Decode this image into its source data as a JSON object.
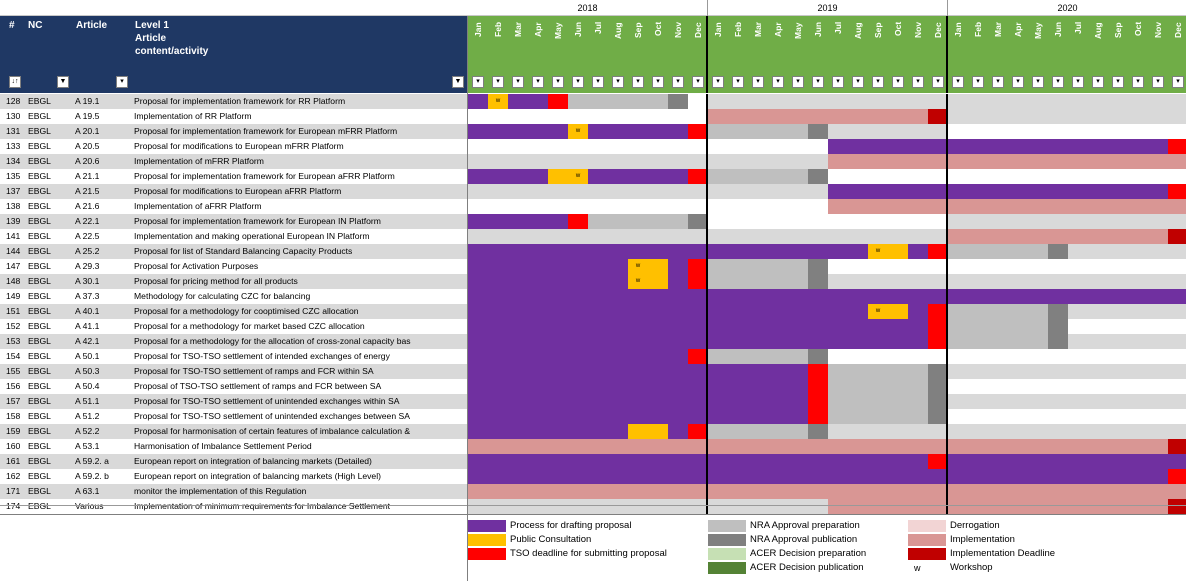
{
  "colors": {
    "P": "#7030a0",
    "C": "#ffc000",
    "T": "#ff0000",
    "A": "#bfbfbf",
    "B": "#808080",
    "D": "#c6e0b4",
    "E": "#548235",
    "G": "#f2d4d4",
    "I": "#d99694",
    "J": "#c00000",
    "L": "#d9d9d9",
    "header_blue": "#1f3864",
    "header_green": "#70ad47"
  },
  "header": {
    "hash": "#",
    "nc": "NC",
    "article": "Article",
    "level": "Level 1",
    "level2": "Article",
    "level3": "content/activity",
    "sort_btn": "↓↑",
    "filter_icon": "▼",
    "dropdown_icon": "▾"
  },
  "years": [
    "2018",
    "2019",
    "2020"
  ],
  "months": [
    "Jan",
    "Feb",
    "Mar",
    "Apr",
    "May",
    "Jun",
    "Jul",
    "Aug",
    "Sep",
    "Oct",
    "Nov",
    "Dec",
    "Jan",
    "Feb",
    "Mar",
    "Apr",
    "May",
    "Jun",
    "Jul",
    "Aug",
    "Sep",
    "Oct",
    "Nov",
    "Dec",
    "Jan",
    "Feb",
    "Mar",
    "Apr",
    "May",
    "Jun",
    "Jul",
    "Aug",
    "Sep",
    "Oct",
    "Nov",
    "Dec"
  ],
  "rows": [
    {
      "num": "128",
      "nc": "EBGL",
      "art": "A 19.1",
      "desc": "Proposal for implementation framework for RR Platform",
      "cells": "PCPPTAAAAAB_LLLLLLLLLLLLLLLLLLLLLLLL",
      "w": [
        1
      ]
    },
    {
      "num": "130",
      "nc": "EBGL",
      "art": "A 19.5",
      "desc": "Implementation of RR Platform",
      "cells": "____________IIIIIIIIIIIJLLLLLLLLLLLL",
      "w": []
    },
    {
      "num": "131",
      "nc": "EBGL",
      "art": "A 20.1",
      "desc": "Proposal for implementation framework for European mFRR Platform",
      "cells": "PPPPPCPPPPPTAAAAABLLLLLL____________",
      "w": [
        5
      ]
    },
    {
      "num": "133",
      "nc": "EBGL",
      "art": "A 20.5",
      "desc": "Proposal for modifications to European mFRR Platform",
      "cells": "__________________PPPPPPPPPPPPPPPPPT",
      "w": []
    },
    {
      "num": "134",
      "nc": "EBGL",
      "art": "A 20.6",
      "desc": "Implementation of mFRR Platform",
      "cells": "LLLLLLLLLLLLLLLLLLIIIIIIIIIIIIIIIIII",
      "w": []
    },
    {
      "num": "135",
      "nc": "EBGL",
      "art": "A 21.1",
      "desc": "Proposal for implementation framework for European aFRR Platform",
      "cells": "PPPPCCPPPPPTAAAAAB__________________",
      "w": [
        5
      ]
    },
    {
      "num": "137",
      "nc": "EBGL",
      "art": "A 21.5",
      "desc": "Proposal for modifications to European aFRR Platform",
      "cells": "LLLLLLLLLLLLLLLLLLPPPPPPPPPPPPPPPPPT",
      "w": []
    },
    {
      "num": "138",
      "nc": "EBGL",
      "art": "A 21.6",
      "desc": "Implementation of aFRR Platform",
      "cells": "__________________IIIIIIIIIIIIIIIIII",
      "w": []
    },
    {
      "num": "139",
      "nc": "EBGL",
      "art": "A 22.1",
      "desc": "Proposal for implementation framework for European IN Platform",
      "cells": "PPPPPTAAAAAB____________LLLLLLLLLLLL",
      "w": []
    },
    {
      "num": "141",
      "nc": "EBGL",
      "art": "A 22.5",
      "desc": "Implementation and making operational European IN Platform",
      "cells": "LLLLLLLLLLLLLLLLLLLLLLLLIIIIIIIIIIIJ",
      "w": []
    },
    {
      "num": "144",
      "nc": "EBGL",
      "art": "A 25.2",
      "desc": "Proposal for list of Standard Balancing Capacity Products",
      "cells": "PPPPPPPPPPPPPPPPPPPPCCPTAAAAABLLLLLL",
      "w": [
        20
      ]
    },
    {
      "num": "147",
      "nc": "EBGL",
      "art": "A 29.3",
      "desc": "Proposal for Activation Purposes",
      "cells": "PPPPPPPPCCPTAAAAAB__________________",
      "w": [
        8
      ]
    },
    {
      "num": "148",
      "nc": "EBGL",
      "art": "A 30.1",
      "desc": "Proposal for pricing method for all products",
      "cells": "PPPPPPPPCCPTAAAAABLLLLLLLLLLLLLLLLLL",
      "w": [
        8
      ]
    },
    {
      "num": "149",
      "nc": "EBGL",
      "art": "A 37.3",
      "desc": "Methodology for calculating CZC for balancing",
      "cells": "PPPPPPPPPPPPPPPPPPPPPPPPPPPPPPPPPPPP",
      "w": []
    },
    {
      "num": "151",
      "nc": "EBGL",
      "art": "A 40.1",
      "desc": "Proposal for a methodology for cooptimised CZC allocation",
      "cells": "PPPPPPPPPPPPPPPPPPPPCCPTAAAAABLLLLLL",
      "w": [
        20
      ]
    },
    {
      "num": "152",
      "nc": "EBGL",
      "art": "A 41.1",
      "desc": "Proposal for a methodology for market based CZC allocation",
      "cells": "PPPPPPPPPPPPPPPPPPPPPPPTAAAAAB______",
      "w": []
    },
    {
      "num": "153",
      "nc": "EBGL",
      "art": "A 42.1",
      "desc": "Proposal for a methodology for the allocation of cross-zonal capacity bas",
      "cells": "PPPPPPPPPPPPPPPPPPPPPPPTAAAAABLLLLLL",
      "w": []
    },
    {
      "num": "154",
      "nc": "EBGL",
      "art": "A 50.1",
      "desc": "Proposal for TSO-TSO settlement of intended exchanges of energy",
      "cells": "PPPPPPPPPPPTAAAAAB__________________",
      "w": []
    },
    {
      "num": "155",
      "nc": "EBGL",
      "art": "A 50.3",
      "desc": "Proposal for TSO-TSO settlement of ramps and FCR within SA",
      "cells": "PPPPPPPPPPPPPPPPPTAAAAABLLLLLLLLLLLL",
      "w": []
    },
    {
      "num": "156",
      "nc": "EBGL",
      "art": "A 50.4",
      "desc": "Proposal of TSO-TSO settlement of ramps and FCR between SA",
      "cells": "PPPPPPPPPPPPPPPPPTAAAAAB____________",
      "w": []
    },
    {
      "num": "157",
      "nc": "EBGL",
      "art": "A 51.1",
      "desc": "Proposal for TSO-TSO settlement of unintended exchanges within SA",
      "cells": "PPPPPPPPPPPPPPPPPTAAAAABLLLLLLLLLLLL",
      "w": []
    },
    {
      "num": "158",
      "nc": "EBGL",
      "art": "A 51.2",
      "desc": "Proposal for TSO-TSO settlement of unintended exchanges between SA",
      "cells": "PPPPPPPPPPPPPPPPPTAAAAAB____________",
      "w": []
    },
    {
      "num": "159",
      "nc": "EBGL",
      "art": "A 52.2",
      "desc": "Proposal for harmonisation of certain features of imbalance calculation &",
      "cells": "PPPPPPPPCCPTAAAAABLLLLLLLLLLLLLLLLLL",
      "w": []
    },
    {
      "num": "160",
      "nc": "EBGL",
      "art": "A 53.1",
      "desc": "Harmonisation of Imbalance Settlement Period",
      "cells": "IIIIIIIIIIIIIIIIIIIIIIIIIIIIIIIIIIIJ",
      "w": []
    },
    {
      "num": "161",
      "nc": "EBGL",
      "art": "A 59.2. a",
      "desc": "European report on integration of balancing markets (Detailed)",
      "cells": "PPPPPPPPPPPPPPPPPPPPPPPTPPPPPPPPPPPP",
      "w": []
    },
    {
      "num": "162",
      "nc": "EBGL",
      "art": "A 59.2. b",
      "desc": "European report on integration of balancing markets (High Level)",
      "cells": "PPPPPPPPPPPPPPPPPPPPPPPPPPPPPPPPPPPT",
      "w": []
    },
    {
      "num": "171",
      "nc": "EBGL",
      "art": "A 63.1",
      "desc": "monitor the implementation of this Regulation",
      "cells": "IIIIIIIIIIIIIIIIIIIIIIIIIIIIIIIIIIII",
      "w": []
    },
    {
      "num": "174",
      "nc": "EBGL",
      "art": "Various",
      "desc": "Implementation of minimum requirements for Imbalance Settlement",
      "cells": "LLLLLLLLLLLLLLLLLLIIIIIIIIIIIIIIIIIJ",
      "w": []
    }
  ],
  "workshop_mark": "w",
  "legend": [
    {
      "code": "P",
      "label": "Process for drafting proposal"
    },
    {
      "code": "C",
      "label": "Public Consultation"
    },
    {
      "code": "T",
      "label": "TSO deadline for submitting proposal"
    },
    {
      "code": "A",
      "label": "NRA Approval preparation"
    },
    {
      "code": "B",
      "label": "NRA Approval publication"
    },
    {
      "code": "D",
      "label": "ACER Decision preparation"
    },
    {
      "code": "E",
      "label": "ACER Decision publication"
    },
    {
      "code": "G",
      "label": "Derrogation"
    },
    {
      "code": "I",
      "label": "Implementation"
    },
    {
      "code": "J",
      "label": "Implementation Deadline"
    },
    {
      "code": "W",
      "label": "Workshop",
      "mark": "w"
    }
  ]
}
